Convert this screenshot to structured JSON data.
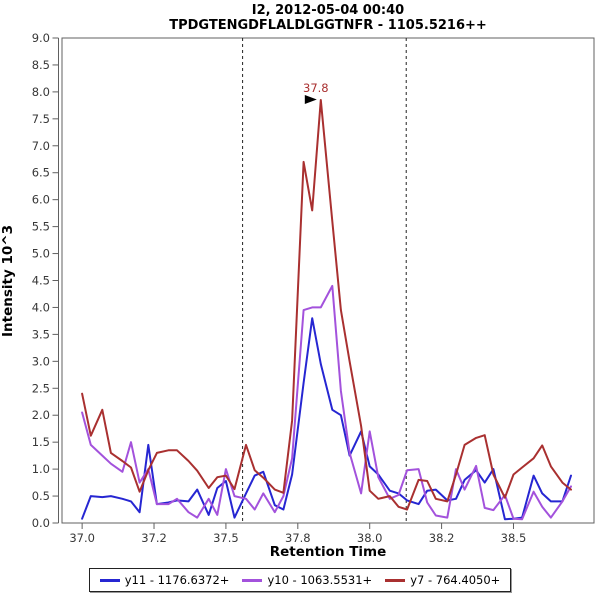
{
  "chart_data": {
    "type": "line",
    "title": "I2, 2012-05-04 00:40",
    "subtitle": "TPDGTENGDFLALDLGGTNFR - 1105.5216++",
    "xlabel": "Retention Time",
    "ylabel": "Intensity 10^3",
    "xlim": [
      36.93,
      38.78
    ],
    "ylim": [
      0,
      9
    ],
    "grid": false,
    "legend_position": "bottom-center",
    "x_ticks": {
      "values": [
        37.0,
        37.25,
        37.5,
        37.75,
        38.0,
        38.25,
        38.5
      ],
      "labels": [
        "37.0",
        "37.2",
        "37.5",
        "37.8",
        "38.0",
        "38.2",
        "38.5"
      ]
    },
    "y_ticks": {
      "values": [
        0,
        0.5,
        1.0,
        1.5,
        2.0,
        2.5,
        3.0,
        3.5,
        4.0,
        4.5,
        5.0,
        5.5,
        6.0,
        6.5,
        7.0,
        7.5,
        8.0,
        8.5,
        9.0
      ],
      "labels": [
        "0.0",
        "0.5",
        "1.0",
        "1.5",
        "2.0",
        "2.5",
        "3.0",
        "3.5",
        "4.0",
        "4.5",
        "5.0",
        "5.5",
        "6.0",
        "6.5",
        "7.0",
        "7.5",
        "8.0",
        "8.5",
        "9.0"
      ]
    },
    "x": [
      37.0,
      37.03,
      37.07,
      37.1,
      37.14,
      37.17,
      37.2,
      37.23,
      37.26,
      37.3,
      37.33,
      37.37,
      37.4,
      37.44,
      37.47,
      37.5,
      37.53,
      37.57,
      37.6,
      37.63,
      37.67,
      37.7,
      37.73,
      37.77,
      37.8,
      37.83,
      37.87,
      37.9,
      37.93,
      37.97,
      38.0,
      38.03,
      38.07,
      38.1,
      38.13,
      38.17,
      38.2,
      38.23,
      38.27,
      38.3,
      38.33,
      38.37,
      38.4,
      38.43,
      38.47,
      38.5,
      38.53,
      38.57,
      38.6,
      38.63,
      38.67,
      38.7
    ],
    "series": [
      {
        "name": "y11",
        "label": "y11 - 1176.6372+",
        "color": "#2626D2",
        "values": [
          0.08,
          0.5,
          0.48,
          0.5,
          0.45,
          0.4,
          0.2,
          1.45,
          0.35,
          0.38,
          0.42,
          0.4,
          0.62,
          0.15,
          0.65,
          0.78,
          0.1,
          0.55,
          0.88,
          0.95,
          0.33,
          0.25,
          0.9,
          2.6,
          3.8,
          2.95,
          2.1,
          2.0,
          1.25,
          1.7,
          1.05,
          0.9,
          0.6,
          0.55,
          0.42,
          0.35,
          0.6,
          0.62,
          0.42,
          0.45,
          0.8,
          0.98,
          0.75,
          1.0,
          0.07,
          0.08,
          0.1,
          0.88,
          0.55,
          0.4,
          0.4,
          0.88
        ]
      },
      {
        "name": "y10",
        "label": "y10 - 1063.5531+",
        "color": "#A352DC",
        "values": [
          2.05,
          1.45,
          1.25,
          1.1,
          0.95,
          1.5,
          0.75,
          1.0,
          0.35,
          0.35,
          0.45,
          0.2,
          0.1,
          0.45,
          0.15,
          1.0,
          0.5,
          0.45,
          0.25,
          0.55,
          0.2,
          0.5,
          1.2,
          3.95,
          4.0,
          4.0,
          4.4,
          2.45,
          1.3,
          0.55,
          1.7,
          0.85,
          0.45,
          0.52,
          0.98,
          1.0,
          0.38,
          0.14,
          0.1,
          1.0,
          0.62,
          1.06,
          0.28,
          0.24,
          0.52,
          0.08,
          0.07,
          0.58,
          0.3,
          0.1,
          0.4,
          0.68
        ]
      },
      {
        "name": "y7",
        "label": "y7 - 764.4050+",
        "color": "#A93030",
        "values": [
          2.4,
          1.62,
          2.1,
          1.3,
          1.15,
          1.03,
          0.58,
          0.98,
          1.3,
          1.35,
          1.35,
          1.15,
          0.97,
          0.65,
          0.85,
          0.88,
          0.63,
          1.45,
          0.98,
          0.84,
          0.62,
          0.56,
          1.9,
          6.7,
          5.8,
          7.85,
          5.6,
          3.95,
          3.0,
          1.8,
          0.6,
          0.45,
          0.5,
          0.3,
          0.25,
          0.8,
          0.78,
          0.45,
          0.4,
          0.9,
          1.45,
          1.58,
          1.63,
          0.9,
          0.47,
          0.9,
          1.03,
          1.2,
          1.44,
          1.05,
          0.75,
          0.62
        ]
      }
    ],
    "integration_boundaries": [
      37.558,
      38.127
    ],
    "peak_annotation": {
      "text": "37.8",
      "rt": 37.83,
      "intensity": 7.85
    }
  }
}
